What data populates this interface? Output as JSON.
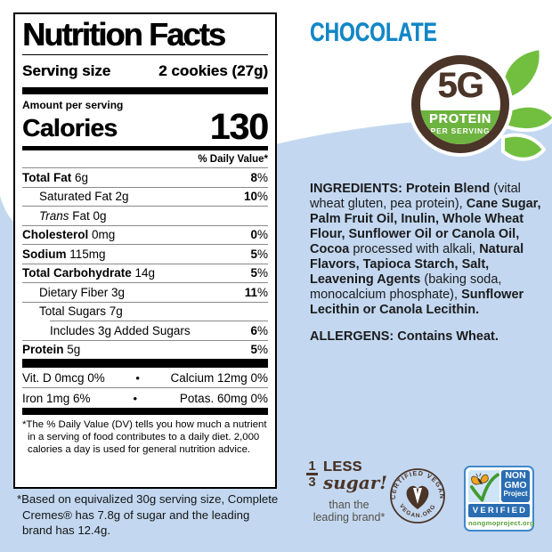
{
  "colors": {
    "background_blue": "#c3d8f0",
    "flavor_blue": "#1287c6",
    "brand_brown": "#4b3428",
    "brand_green": "#6db33f",
    "leaf_green": "#72bf40",
    "nongmo_blue": "#2b6db2",
    "nongmo_border_blue": "#4088cc",
    "url_green": "#5ba13c",
    "butterfly_orange": "#f0a31d"
  },
  "flavor_title": "CHOCOLATE",
  "protein_badge": {
    "amount": "5G",
    "line1": "PROTEIN",
    "line2": "PER SERVING"
  },
  "nutrition_label": {
    "title": "Nutrition Facts",
    "serving_size_label": "Serving size",
    "serving_size_value": "2 cookies (27g)",
    "amount_per_serving": "Amount per serving",
    "calories_label": "Calories",
    "calories_value": "130",
    "daily_value_header": "% Daily Value*",
    "rows": [
      {
        "bold_part": "Total Fat",
        "rest": " 6g",
        "dv": "8",
        "indent": 0
      },
      {
        "rest": "Saturated Fat 2g",
        "dv": "10",
        "indent": 1
      },
      {
        "italic_part": "Trans",
        "rest": " Fat 0g",
        "dv": "",
        "indent": 1
      },
      {
        "bold_part": "Cholesterol",
        "rest": " 0mg",
        "dv": "0",
        "indent": 0
      },
      {
        "bold_part": "Sodium",
        "rest": " 115mg",
        "dv": "5",
        "indent": 0
      },
      {
        "bold_part": "Total Carbohydrate",
        "rest": " 14g",
        "dv": "5",
        "indent": 0
      },
      {
        "rest": "Dietary Fiber 3g",
        "dv": "11",
        "indent": 1
      },
      {
        "rest": "Total Sugars 7g",
        "dv": "",
        "indent": 1
      },
      {
        "rest": "Includes 3g Added Sugars",
        "dv": "6",
        "indent": 2
      },
      {
        "bold_part": "Protein",
        "rest": " 5g",
        "dv": "5",
        "indent": 0
      }
    ],
    "micronutrient_rows": [
      {
        "left": "Vit. D 0mcg 0%",
        "bullet": "•",
        "right": "Calcium 12mg 0%"
      },
      {
        "left": "Iron 1mg 6%",
        "bullet": "•",
        "right": "Potas. 60mg 0%"
      }
    ],
    "footnote": "*The % Daily Value (DV) tells you how much a nutrient in a serving of food contributes to a daily diet. 2,000 calories a day is used for general nutrition advice."
  },
  "ingredients": {
    "segments": [
      {
        "t": "INGREDIENTS: Protein Blend",
        "b": true
      },
      {
        "t": " (vital wheat gluten, pea protein), ",
        "b": false
      },
      {
        "t": "Cane Sugar, Palm Fruit Oil, Inulin, Whole Wheat Flour, Sunflower Oil or Canola Oil, Cocoa",
        "b": true
      },
      {
        "t": " processed with alkali, ",
        "b": false
      },
      {
        "t": "Natural Flavors, Tapioca Starch, Salt, Leavening Agents",
        "b": true
      },
      {
        "t": " (baking soda, monocalcium phosphate), ",
        "b": false
      },
      {
        "t": "Sunflower Lecithin or Canola Lecithin.",
        "b": true
      }
    ]
  },
  "allergens": "ALLERGENS: Contains Wheat.",
  "sugar_claim": {
    "numerator": "1",
    "denominator": "3",
    "less": "LESS",
    "sugar": "sugar!",
    "sub_line1": "than the",
    "sub_line2": "leading brand*"
  },
  "vegan_badge": {
    "arc_top": "CERTIFIED VEGAN",
    "arc_bottom": "VEGAN.ORG"
  },
  "nongmo_badge": {
    "line1": "NON",
    "line2": "GMO",
    "line3": "Project",
    "verified": "VERIFIED",
    "url": "nongmoproject.org"
  },
  "bottom_note": {
    "lines": [
      "*Based on equivalized 30g serving size, Complete",
      "Cremes® has 7.8g of sugar and the leading",
      "brand has 12.4g."
    ]
  }
}
